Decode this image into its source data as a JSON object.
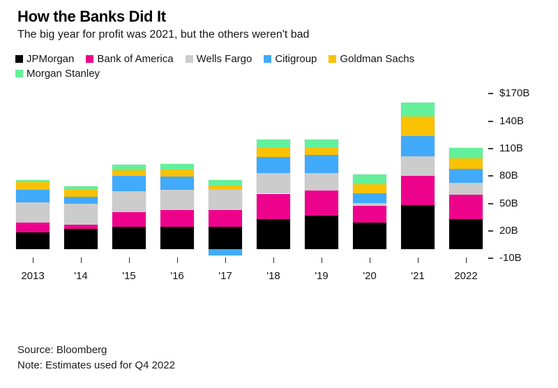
{
  "chart_data": {
    "type": "bar",
    "stacked": true,
    "title": "How the Banks Did It",
    "subtitle": "The big year for profit was 2021, but the others weren't bad",
    "source": "Source: Bloomberg",
    "note": "Note: Estimates used for Q4 2022",
    "unit": "$B (annual net income)",
    "categories": [
      "2013",
      "'14",
      "'15",
      "'16",
      "'17",
      "'18",
      "'19",
      "'20",
      "'21",
      "2022"
    ],
    "series": [
      {
        "name": "JPMorgan",
        "color": "#000000",
        "values": [
          17.9,
          21.8,
          24.4,
          24.7,
          24.4,
          32.5,
          36.4,
          29.1,
          48.3,
          33.0
        ]
      },
      {
        "name": "Bank of America",
        "color": "#ED028C",
        "values": [
          11.4,
          4.8,
          15.9,
          17.9,
          18.2,
          28.1,
          27.4,
          17.9,
          32.0,
          26.5
        ]
      },
      {
        "name": "Wells Fargo",
        "color": "#CCCCCC",
        "values": [
          21.9,
          23.1,
          22.9,
          21.9,
          22.2,
          22.4,
          19.5,
          3.3,
          21.5,
          13.2
        ]
      },
      {
        "name": "Citigroup",
        "color": "#41AAFB",
        "values": [
          13.7,
          7.3,
          17.2,
          14.9,
          -6.8,
          18.0,
          19.4,
          11.0,
          22.0,
          15.0
        ]
      },
      {
        "name": "Goldman Sachs",
        "color": "#FBC103",
        "values": [
          8.0,
          8.5,
          6.1,
          7.4,
          4.3,
          10.5,
          8.5,
          9.5,
          21.6,
          11.5
        ]
      },
      {
        "name": "Morgan Stanley",
        "color": "#63F09B",
        "values": [
          2.9,
          3.5,
          6.1,
          6.0,
          6.2,
          8.7,
          9.0,
          11.0,
          15.0,
          11.2
        ]
      }
    ],
    "y_axis": {
      "side": "right",
      "ticks": [
        "$170B",
        "140B",
        "110B",
        "80B",
        "50B",
        "20B",
        "-10B"
      ],
      "tick_values": [
        170,
        140,
        110,
        80,
        50,
        20,
        -10
      ],
      "ylim": [
        -10,
        170
      ],
      "grid": false
    },
    "legend_position": "top"
  }
}
